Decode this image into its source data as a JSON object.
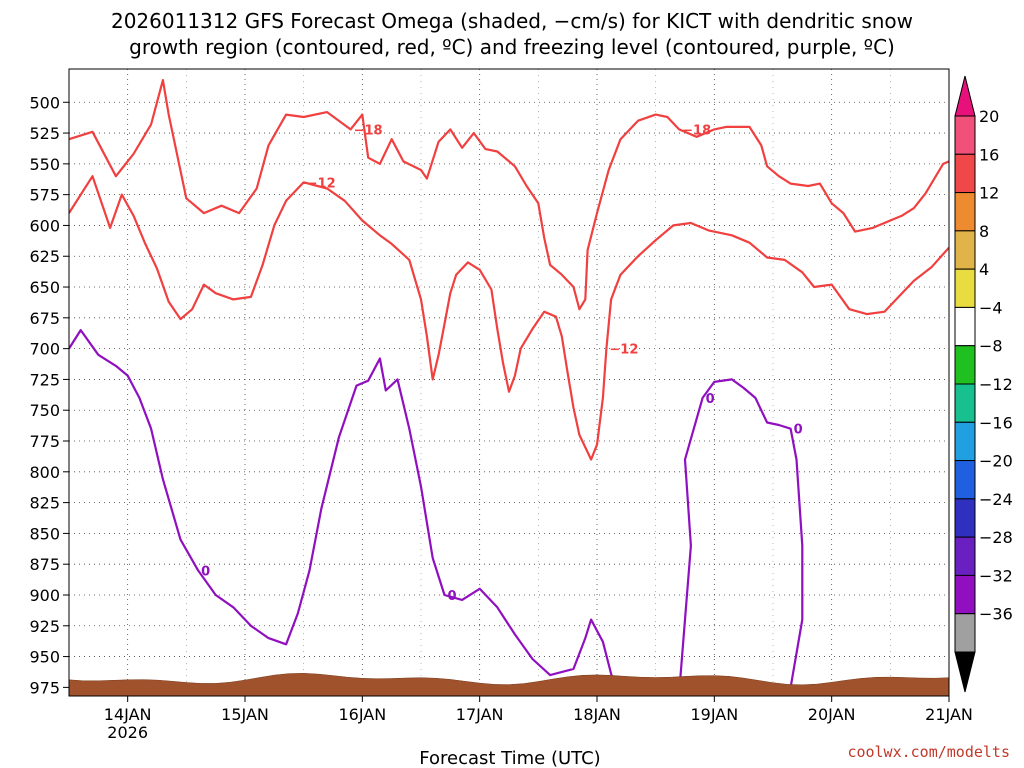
{
  "chart_data": {
    "type": "contour-timeheight",
    "title_line1": "2026011312 GFS Forecast Omega (shaded, −cm/s) for KICT with dendritic snow",
    "title_line2": "growth region (contoured, red, ºC) and freezing level (contoured, purple, ºC)",
    "xlabel": "Forecast Time (UTC)",
    "credit": "coolwx.com/modelts",
    "x_ticks": [
      {
        "t": 14,
        "label": "14JAN"
      },
      {
        "t": 15,
        "label": "15JAN"
      },
      {
        "t": 16,
        "label": "16JAN"
      },
      {
        "t": 17,
        "label": "17JAN"
      },
      {
        "t": 18,
        "label": "18JAN"
      },
      {
        "t": 19,
        "label": "19JAN"
      },
      {
        "t": 20,
        "label": "20JAN"
      },
      {
        "t": 21,
        "label": "21JAN"
      }
    ],
    "year_label": "2026",
    "xlim": [
      13.5,
      21.0
    ],
    "ylim_hPa": [
      982,
      473
    ],
    "y_ticks": [
      500,
      525,
      550,
      575,
      600,
      625,
      650,
      675,
      700,
      725,
      750,
      775,
      800,
      825,
      850,
      875,
      900,
      925,
      950,
      975
    ],
    "colorbar": {
      "labels": [
        "20",
        "16",
        "12",
        "8",
        "4",
        "−4",
        "−8",
        "−12",
        "−16",
        "−20",
        "−24",
        "−28",
        "−32",
        "−36"
      ],
      "colors": [
        "#f0507a",
        "#f04848",
        "#ee8a30",
        "#e0b448",
        "#e8dc40",
        "#ffffff",
        "#20c020",
        "#18c090",
        "#20a0e0",
        "#2060e0",
        "#3030c0",
        "#6a20c0",
        "#9010c0",
        "#a0a0a0"
      ],
      "upper_arrow_color": "#e8107a",
      "lower_arrow_color": "#000000"
    },
    "contours": {
      "dgz_minus18_upper": {
        "label": "−18",
        "color": "#f04040",
        "points": [
          [
            13.5,
            530
          ],
          [
            13.7,
            524
          ],
          [
            13.9,
            560
          ],
          [
            14.05,
            542
          ],
          [
            14.2,
            518
          ],
          [
            14.25,
            500
          ],
          [
            14.3,
            482
          ],
          [
            14.35,
            510
          ],
          [
            14.5,
            578
          ],
          [
            14.65,
            590
          ],
          [
            14.8,
            584
          ],
          [
            14.95,
            590
          ],
          [
            15.1,
            570
          ],
          [
            15.2,
            535
          ],
          [
            15.35,
            510
          ],
          [
            15.5,
            512
          ],
          [
            15.7,
            508
          ],
          [
            15.9,
            522
          ],
          [
            16.0,
            510
          ],
          [
            16.05,
            545
          ],
          [
            16.15,
            550
          ],
          [
            16.25,
            530
          ],
          [
            16.35,
            548
          ],
          [
            16.5,
            555
          ],
          [
            16.55,
            562
          ],
          [
            16.65,
            532
          ],
          [
            16.75,
            522
          ],
          [
            16.85,
            537
          ],
          [
            16.95,
            525
          ],
          [
            17.05,
            538
          ],
          [
            17.15,
            540
          ],
          [
            17.3,
            552
          ],
          [
            17.4,
            568
          ],
          [
            17.5,
            582
          ],
          [
            17.55,
            610
          ],
          [
            17.6,
            632
          ],
          [
            17.7,
            640
          ],
          [
            17.8,
            650
          ],
          [
            17.85,
            668
          ],
          [
            17.9,
            660
          ],
          [
            17.92,
            620
          ],
          [
            18.0,
            590
          ],
          [
            18.1,
            555
          ],
          [
            18.2,
            530
          ],
          [
            18.35,
            515
          ],
          [
            18.5,
            510
          ],
          [
            18.6,
            512
          ],
          [
            18.7,
            522
          ],
          [
            18.85,
            528
          ],
          [
            19.0,
            522
          ],
          [
            19.1,
            520
          ],
          [
            19.3,
            520
          ],
          [
            19.4,
            535
          ],
          [
            19.45,
            552
          ],
          [
            19.55,
            560
          ],
          [
            19.65,
            566
          ],
          [
            19.8,
            568
          ],
          [
            19.9,
            566
          ],
          [
            20.0,
            582
          ],
          [
            20.1,
            590
          ],
          [
            20.2,
            605
          ],
          [
            20.35,
            602
          ],
          [
            20.5,
            596
          ],
          [
            20.6,
            592
          ],
          [
            20.7,
            586
          ],
          [
            20.8,
            574
          ],
          [
            20.95,
            550
          ],
          [
            21.0,
            548
          ]
        ]
      },
      "dgz_minus12": {
        "label": "−12",
        "color": "#f04040",
        "points": [
          [
            13.5,
            590
          ],
          [
            13.7,
            560
          ],
          [
            13.85,
            602
          ],
          [
            13.95,
            575
          ],
          [
            14.05,
            592
          ],
          [
            14.15,
            615
          ],
          [
            14.25,
            635
          ],
          [
            14.35,
            662
          ],
          [
            14.45,
            676
          ],
          [
            14.55,
            668
          ],
          [
            14.65,
            648
          ],
          [
            14.75,
            655
          ],
          [
            14.9,
            660
          ],
          [
            15.05,
            658
          ],
          [
            15.15,
            632
          ],
          [
            15.25,
            600
          ],
          [
            15.35,
            580
          ],
          [
            15.5,
            565
          ],
          [
            15.7,
            570
          ],
          [
            15.85,
            580
          ],
          [
            16.0,
            596
          ],
          [
            16.15,
            608
          ],
          [
            16.25,
            615
          ],
          [
            16.4,
            628
          ],
          [
            16.5,
            660
          ],
          [
            16.55,
            690
          ],
          [
            16.6,
            725
          ],
          [
            16.65,
            705
          ],
          [
            16.7,
            680
          ],
          [
            16.75,
            655
          ],
          [
            16.8,
            640
          ],
          [
            16.9,
            630
          ],
          [
            17.0,
            636
          ],
          [
            17.1,
            652
          ],
          [
            17.15,
            684
          ],
          [
            17.2,
            712
          ],
          [
            17.25,
            735
          ],
          [
            17.3,
            722
          ],
          [
            17.35,
            700
          ],
          [
            17.45,
            684
          ],
          [
            17.55,
            670
          ],
          [
            17.65,
            674
          ],
          [
            17.7,
            690
          ],
          [
            17.75,
            720
          ],
          [
            17.8,
            748
          ],
          [
            17.85,
            770
          ],
          [
            17.95,
            790
          ],
          [
            18.0,
            778
          ],
          [
            18.05,
            740
          ],
          [
            18.08,
            700
          ],
          [
            18.12,
            660
          ],
          [
            18.2,
            640
          ],
          [
            18.35,
            625
          ],
          [
            18.5,
            612
          ],
          [
            18.65,
            600
          ],
          [
            18.8,
            598
          ],
          [
            18.95,
            604
          ],
          [
            19.15,
            608
          ],
          [
            19.3,
            614
          ],
          [
            19.45,
            626
          ],
          [
            19.6,
            628
          ],
          [
            19.75,
            638
          ],
          [
            19.85,
            650
          ],
          [
            20.0,
            648
          ],
          [
            20.15,
            668
          ],
          [
            20.3,
            672
          ],
          [
            20.45,
            670
          ],
          [
            20.55,
            660
          ],
          [
            20.7,
            645
          ],
          [
            20.85,
            634
          ],
          [
            21.0,
            618
          ]
        ]
      },
      "freezing_0C": {
        "label": "0",
        "color": "#9010c0",
        "points": [
          [
            13.5,
            700
          ],
          [
            13.6,
            685
          ],
          [
            13.75,
            705
          ],
          [
            13.9,
            714
          ],
          [
            14.0,
            722
          ],
          [
            14.1,
            740
          ],
          [
            14.2,
            765
          ],
          [
            14.3,
            806
          ],
          [
            14.45,
            855
          ],
          [
            14.6,
            880
          ],
          [
            14.75,
            900
          ],
          [
            14.9,
            910
          ],
          [
            15.05,
            925
          ],
          [
            15.2,
            935
          ],
          [
            15.35,
            940
          ],
          [
            15.45,
            915
          ],
          [
            15.55,
            880
          ],
          [
            15.65,
            830
          ],
          [
            15.8,
            772
          ],
          [
            15.95,
            730
          ],
          [
            16.05,
            726
          ],
          [
            16.15,
            708
          ],
          [
            16.2,
            734
          ],
          [
            16.3,
            725
          ],
          [
            16.4,
            765
          ],
          [
            16.5,
            812
          ],
          [
            16.6,
            870
          ],
          [
            16.7,
            900
          ],
          [
            16.85,
            904
          ],
          [
            17.0,
            895
          ],
          [
            17.15,
            910
          ],
          [
            17.3,
            932
          ],
          [
            17.45,
            952
          ],
          [
            17.6,
            965
          ],
          [
            17.8,
            960
          ],
          [
            17.9,
            935
          ],
          [
            17.95,
            920
          ],
          [
            18.05,
            938
          ],
          [
            18.15,
            975
          ]
        ]
      },
      "freezing_0C_late": {
        "label": "0",
        "color": "#9010c0",
        "points": [
          [
            18.7,
            980
          ],
          [
            18.75,
            920
          ],
          [
            18.8,
            860
          ],
          [
            18.75,
            790
          ],
          [
            18.9,
            740
          ],
          [
            19.0,
            727
          ],
          [
            19.15,
            725
          ],
          [
            19.25,
            732
          ],
          [
            19.35,
            740
          ],
          [
            19.45,
            760
          ],
          [
            19.55,
            762
          ],
          [
            19.65,
            765
          ],
          [
            19.7,
            790
          ],
          [
            19.75,
            860
          ],
          [
            19.75,
            920
          ],
          [
            19.65,
            975
          ]
        ]
      }
    }
  }
}
